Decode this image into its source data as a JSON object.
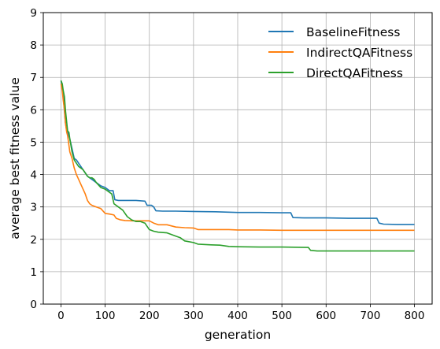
{
  "chart_data": {
    "type": "line",
    "title": "",
    "xlabel": "generation",
    "ylabel": "average best fitness value",
    "xlim": [
      -40,
      840
    ],
    "ylim": [
      0,
      9
    ],
    "xticks": [
      0,
      100,
      200,
      300,
      400,
      500,
      600,
      700,
      800
    ],
    "yticks": [
      0,
      1,
      2,
      3,
      4,
      5,
      6,
      7,
      8,
      9
    ],
    "grid": true,
    "legend_position": "top-right",
    "series": [
      {
        "name": "BaselineFitness",
        "color": "#1f77b4",
        "x": [
          0,
          3,
          5,
          7,
          10,
          13,
          15,
          20,
          25,
          30,
          35,
          40,
          45,
          50,
          55,
          60,
          65,
          70,
          80,
          90,
          100,
          110,
          118,
          122,
          130,
          150,
          170,
          190,
          195,
          205,
          210,
          215,
          230,
          260,
          300,
          350,
          400,
          450,
          500,
          520,
          525,
          550,
          600,
          650,
          700,
          715,
          720,
          730,
          760,
          800
        ],
        "y": [
          6.9,
          6.7,
          6.5,
          6.1,
          5.6,
          5.35,
          5.3,
          5.1,
          4.8,
          4.5,
          4.45,
          4.35,
          4.25,
          4.15,
          4.05,
          3.95,
          3.9,
          3.85,
          3.75,
          3.65,
          3.6,
          3.5,
          3.5,
          3.22,
          3.2,
          3.2,
          3.2,
          3.18,
          3.05,
          3.05,
          3.0,
          2.88,
          2.87,
          2.87,
          2.86,
          2.85,
          2.83,
          2.83,
          2.82,
          2.82,
          2.67,
          2.66,
          2.66,
          2.65,
          2.65,
          2.65,
          2.5,
          2.47,
          2.46,
          2.46
        ]
      },
      {
        "name": "IndirectQAFitness",
        "color": "#ff7f0e",
        "x": [
          0,
          3,
          5,
          8,
          10,
          13,
          15,
          18,
          20,
          25,
          30,
          35,
          40,
          45,
          50,
          55,
          60,
          65,
          70,
          80,
          90,
          100,
          110,
          120,
          125,
          135,
          145,
          160,
          180,
          200,
          210,
          220,
          240,
          260,
          280,
          300,
          310,
          350,
          380,
          400,
          450,
          500,
          550,
          600,
          700,
          800
        ],
        "y": [
          6.8,
          6.6,
          6.3,
          6.0,
          5.6,
          5.3,
          5.2,
          4.9,
          4.7,
          4.5,
          4.2,
          4.0,
          3.85,
          3.7,
          3.55,
          3.4,
          3.2,
          3.1,
          3.05,
          3.0,
          2.95,
          2.8,
          2.78,
          2.75,
          2.65,
          2.6,
          2.58,
          2.57,
          2.57,
          2.57,
          2.5,
          2.45,
          2.45,
          2.38,
          2.36,
          2.35,
          2.3,
          2.3,
          2.3,
          2.29,
          2.29,
          2.28,
          2.28,
          2.28,
          2.28,
          2.28
        ]
      },
      {
        "name": "DirectQAFitness",
        "color": "#2ca02c",
        "x": [
          0,
          3,
          5,
          8,
          10,
          13,
          15,
          18,
          20,
          25,
          30,
          35,
          40,
          45,
          50,
          55,
          60,
          65,
          70,
          75,
          80,
          90,
          100,
          110,
          115,
          120,
          130,
          140,
          150,
          160,
          170,
          180,
          190,
          200,
          210,
          220,
          240,
          260,
          270,
          280,
          300,
          310,
          340,
          360,
          380,
          400,
          450,
          500,
          560,
          565,
          580,
          600,
          700,
          800
        ],
        "y": [
          6.9,
          6.8,
          6.6,
          6.4,
          6.0,
          5.6,
          5.35,
          5.3,
          5.1,
          4.7,
          4.45,
          4.35,
          4.25,
          4.2,
          4.15,
          4.05,
          3.95,
          3.9,
          3.9,
          3.85,
          3.75,
          3.6,
          3.55,
          3.45,
          3.4,
          3.1,
          3.0,
          2.9,
          2.7,
          2.6,
          2.55,
          2.55,
          2.5,
          2.3,
          2.25,
          2.22,
          2.2,
          2.1,
          2.05,
          1.95,
          1.9,
          1.85,
          1.83,
          1.82,
          1.78,
          1.77,
          1.76,
          1.76,
          1.75,
          1.66,
          1.64,
          1.64,
          1.64,
          1.64
        ]
      }
    ]
  }
}
